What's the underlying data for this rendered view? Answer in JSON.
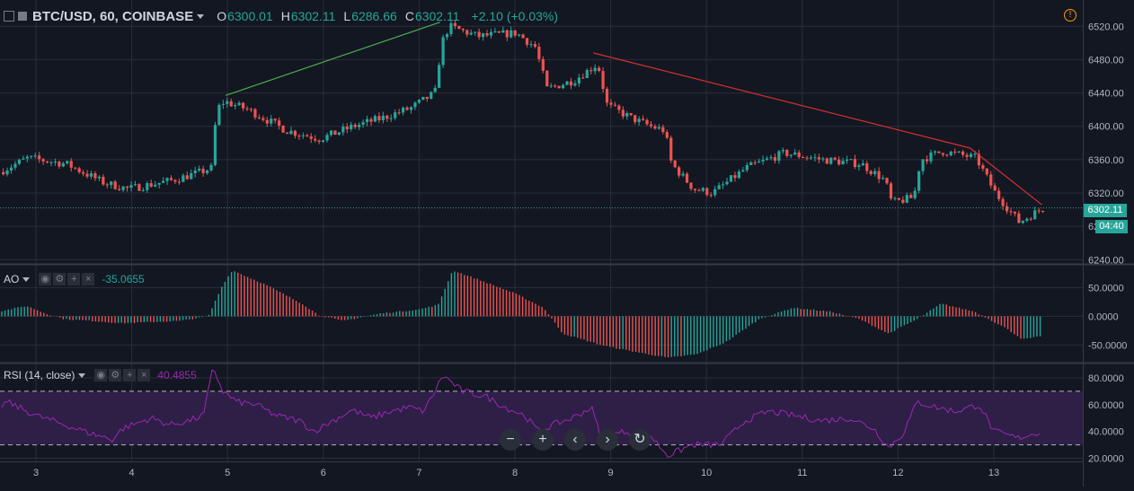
{
  "header": {
    "symbol": "BTC/USD, 60, COINBASE",
    "o_label": "O",
    "o_value": "6300.01",
    "h_label": "H",
    "h_value": "6302.11",
    "l_label": "L",
    "l_value": "6286.66",
    "c_label": "C",
    "c_value": "6302.11",
    "change": "+2.10 (+0.03%)"
  },
  "price_badge": "6302.11",
  "countdown_badge": "04:40",
  "ao_label": "AO",
  "ao_value": "-35.0655",
  "rsi_label": "RSI (14, close)",
  "rsi_value": "40.4855",
  "icons": [
    "collapse-icon",
    "warning-icon",
    "eye-icon",
    "gear-icon",
    "plus-icon",
    "close-icon",
    "zoom-out-icon",
    "zoom-in-icon",
    "scroll-left-icon",
    "scroll-right-icon",
    "reset-icon"
  ],
  "colors": {
    "up": "#26a69a",
    "down": "#ef5350",
    "background": "#131722",
    "rsi_line": "#9c27b0",
    "rsi_band": "#2e1f47",
    "trend_up": "#4caf50",
    "trend_down": "#d32f2f"
  },
  "chart_data": [
    {
      "type": "candlestick",
      "x_ticks": [
        "3",
        "4",
        "5",
        "6",
        "7",
        "8",
        "9",
        "10",
        "11",
        "12",
        "13"
      ],
      "y_ticks": [
        "6520.00",
        "6480.00",
        "6440.00",
        "6400.00",
        "6360.00",
        "6320.00",
        "6280.00",
        "6240.00"
      ],
      "ylim": [
        6236,
        6530
      ],
      "current_price": 6302.11,
      "grid": true,
      "trendlines": [
        {
          "color": "green",
          "points": [
            [
              4.98,
              6437
            ],
            [
              7.22,
              6525
            ]
          ]
        },
        {
          "color": "red",
          "points": [
            [
              8.82,
              6488
            ],
            [
              12.75,
              6374
            ],
            [
              13.5,
              6306
            ]
          ]
        }
      ],
      "anchors": [
        [
          2.6,
          6345
        ],
        [
          2.9,
          6362
        ],
        [
          3.3,
          6355
        ],
        [
          3.7,
          6332
        ],
        [
          3.95,
          6325
        ],
        [
          4.4,
          6335
        ],
        [
          4.7,
          6345
        ],
        [
          4.82,
          6350
        ],
        [
          4.87,
          6420
        ],
        [
          4.95,
          6430
        ],
        [
          5.2,
          6420
        ],
        [
          5.6,
          6395
        ],
        [
          5.95,
          6385
        ],
        [
          6.3,
          6400
        ],
        [
          6.6,
          6410
        ],
        [
          6.9,
          6422
        ],
        [
          7.15,
          6440
        ],
        [
          7.22,
          6500
        ],
        [
          7.3,
          6520
        ],
        [
          7.6,
          6508
        ],
        [
          8.0,
          6512
        ],
        [
          8.2,
          6495
        ],
        [
          8.32,
          6445
        ],
        [
          8.6,
          6455
        ],
        [
          8.85,
          6475
        ],
        [
          8.95,
          6425
        ],
        [
          9.2,
          6410
        ],
        [
          9.4,
          6400
        ],
        [
          9.55,
          6395
        ],
        [
          9.62,
          6355
        ],
        [
          9.85,
          6325
        ],
        [
          10.05,
          6320
        ],
        [
          10.4,
          6350
        ],
        [
          10.8,
          6368
        ],
        [
          11.2,
          6360
        ],
        [
          11.6,
          6355
        ],
        [
          11.85,
          6335
        ],
        [
          11.92,
          6308
        ],
        [
          12.15,
          6315
        ],
        [
          12.22,
          6360
        ],
        [
          12.45,
          6370
        ],
        [
          12.8,
          6362
        ],
        [
          13.0,
          6320
        ],
        [
          13.25,
          6285
        ],
        [
          13.5,
          6302
        ]
      ]
    },
    {
      "type": "bar",
      "name": "AO",
      "y_ticks": [
        "50.0000",
        "0.0000",
        "-50.0000"
      ],
      "ylim": [
        -79,
        88
      ],
      "anchors": [
        [
          2.6,
          8
        ],
        [
          2.9,
          18
        ],
        [
          3.1,
          5
        ],
        [
          3.3,
          -5
        ],
        [
          3.6,
          -8
        ],
        [
          3.9,
          -12
        ],
        [
          4.2,
          -10
        ],
        [
          4.5,
          -8
        ],
        [
          4.8,
          0
        ],
        [
          4.95,
          55
        ],
        [
          5.05,
          80
        ],
        [
          5.4,
          55
        ],
        [
          5.8,
          20
        ],
        [
          5.95,
          2
        ],
        [
          6.2,
          -8
        ],
        [
          6.6,
          5
        ],
        [
          7.0,
          12
        ],
        [
          7.2,
          20
        ],
        [
          7.35,
          80
        ],
        [
          7.6,
          65
        ],
        [
          8.0,
          40
        ],
        [
          8.3,
          15
        ],
        [
          8.5,
          -30
        ],
        [
          8.9,
          -50
        ],
        [
          9.2,
          -60
        ],
        [
          9.6,
          -72
        ],
        [
          9.9,
          -66
        ],
        [
          10.2,
          -45
        ],
        [
          10.55,
          -5
        ],
        [
          10.9,
          15
        ],
        [
          11.3,
          8
        ],
        [
          11.6,
          -5
        ],
        [
          11.9,
          -30
        ],
        [
          12.2,
          -5
        ],
        [
          12.45,
          22
        ],
        [
          12.8,
          8
        ],
        [
          13.1,
          -18
        ],
        [
          13.3,
          -40
        ],
        [
          13.5,
          -35
        ]
      ]
    },
    {
      "type": "line",
      "name": "RSI",
      "y_ticks": [
        "80.0000",
        "60.0000",
        "40.0000",
        "20.0000"
      ],
      "ylim": [
        19,
        90
      ],
      "band": [
        30,
        70
      ],
      "anchors": [
        [
          2.55,
          55
        ],
        [
          2.7,
          62
        ],
        [
          3.0,
          52
        ],
        [
          3.3,
          45
        ],
        [
          3.6,
          38
        ],
        [
          3.8,
          34
        ],
        [
          3.9,
          42
        ],
        [
          4.2,
          50
        ],
        [
          4.4,
          45
        ],
        [
          4.6,
          48
        ],
        [
          4.75,
          52
        ],
        [
          4.85,
          88
        ],
        [
          4.95,
          70
        ],
        [
          5.1,
          62
        ],
        [
          5.3,
          60
        ],
        [
          5.5,
          52
        ],
        [
          5.75,
          48
        ],
        [
          5.9,
          40
        ],
        [
          6.1,
          48
        ],
        [
          6.3,
          56
        ],
        [
          6.5,
          50
        ],
        [
          6.7,
          55
        ],
        [
          6.9,
          58
        ],
        [
          7.05,
          55
        ],
        [
          7.15,
          68
        ],
        [
          7.25,
          82
        ],
        [
          7.45,
          70
        ],
        [
          7.7,
          66
        ],
        [
          7.9,
          58
        ],
        [
          8.1,
          52
        ],
        [
          8.25,
          40
        ],
        [
          8.4,
          45
        ],
        [
          8.6,
          50
        ],
        [
          8.8,
          58
        ],
        [
          8.9,
          35
        ],
        [
          9.15,
          40
        ],
        [
          9.4,
          38
        ],
        [
          9.6,
          22
        ],
        [
          9.85,
          30
        ],
        [
          10.15,
          30
        ],
        [
          10.4,
          48
        ],
        [
          10.65,
          55
        ],
        [
          10.9,
          52
        ],
        [
          11.2,
          48
        ],
        [
          11.5,
          50
        ],
        [
          11.75,
          42
        ],
        [
          11.9,
          28
        ],
        [
          12.05,
          38
        ],
        [
          12.2,
          62
        ],
        [
          12.4,
          58
        ],
        [
          12.6,
          55
        ],
        [
          12.85,
          60
        ],
        [
          13.0,
          40
        ],
        [
          13.25,
          35
        ],
        [
          13.5,
          40
        ]
      ]
    }
  ]
}
